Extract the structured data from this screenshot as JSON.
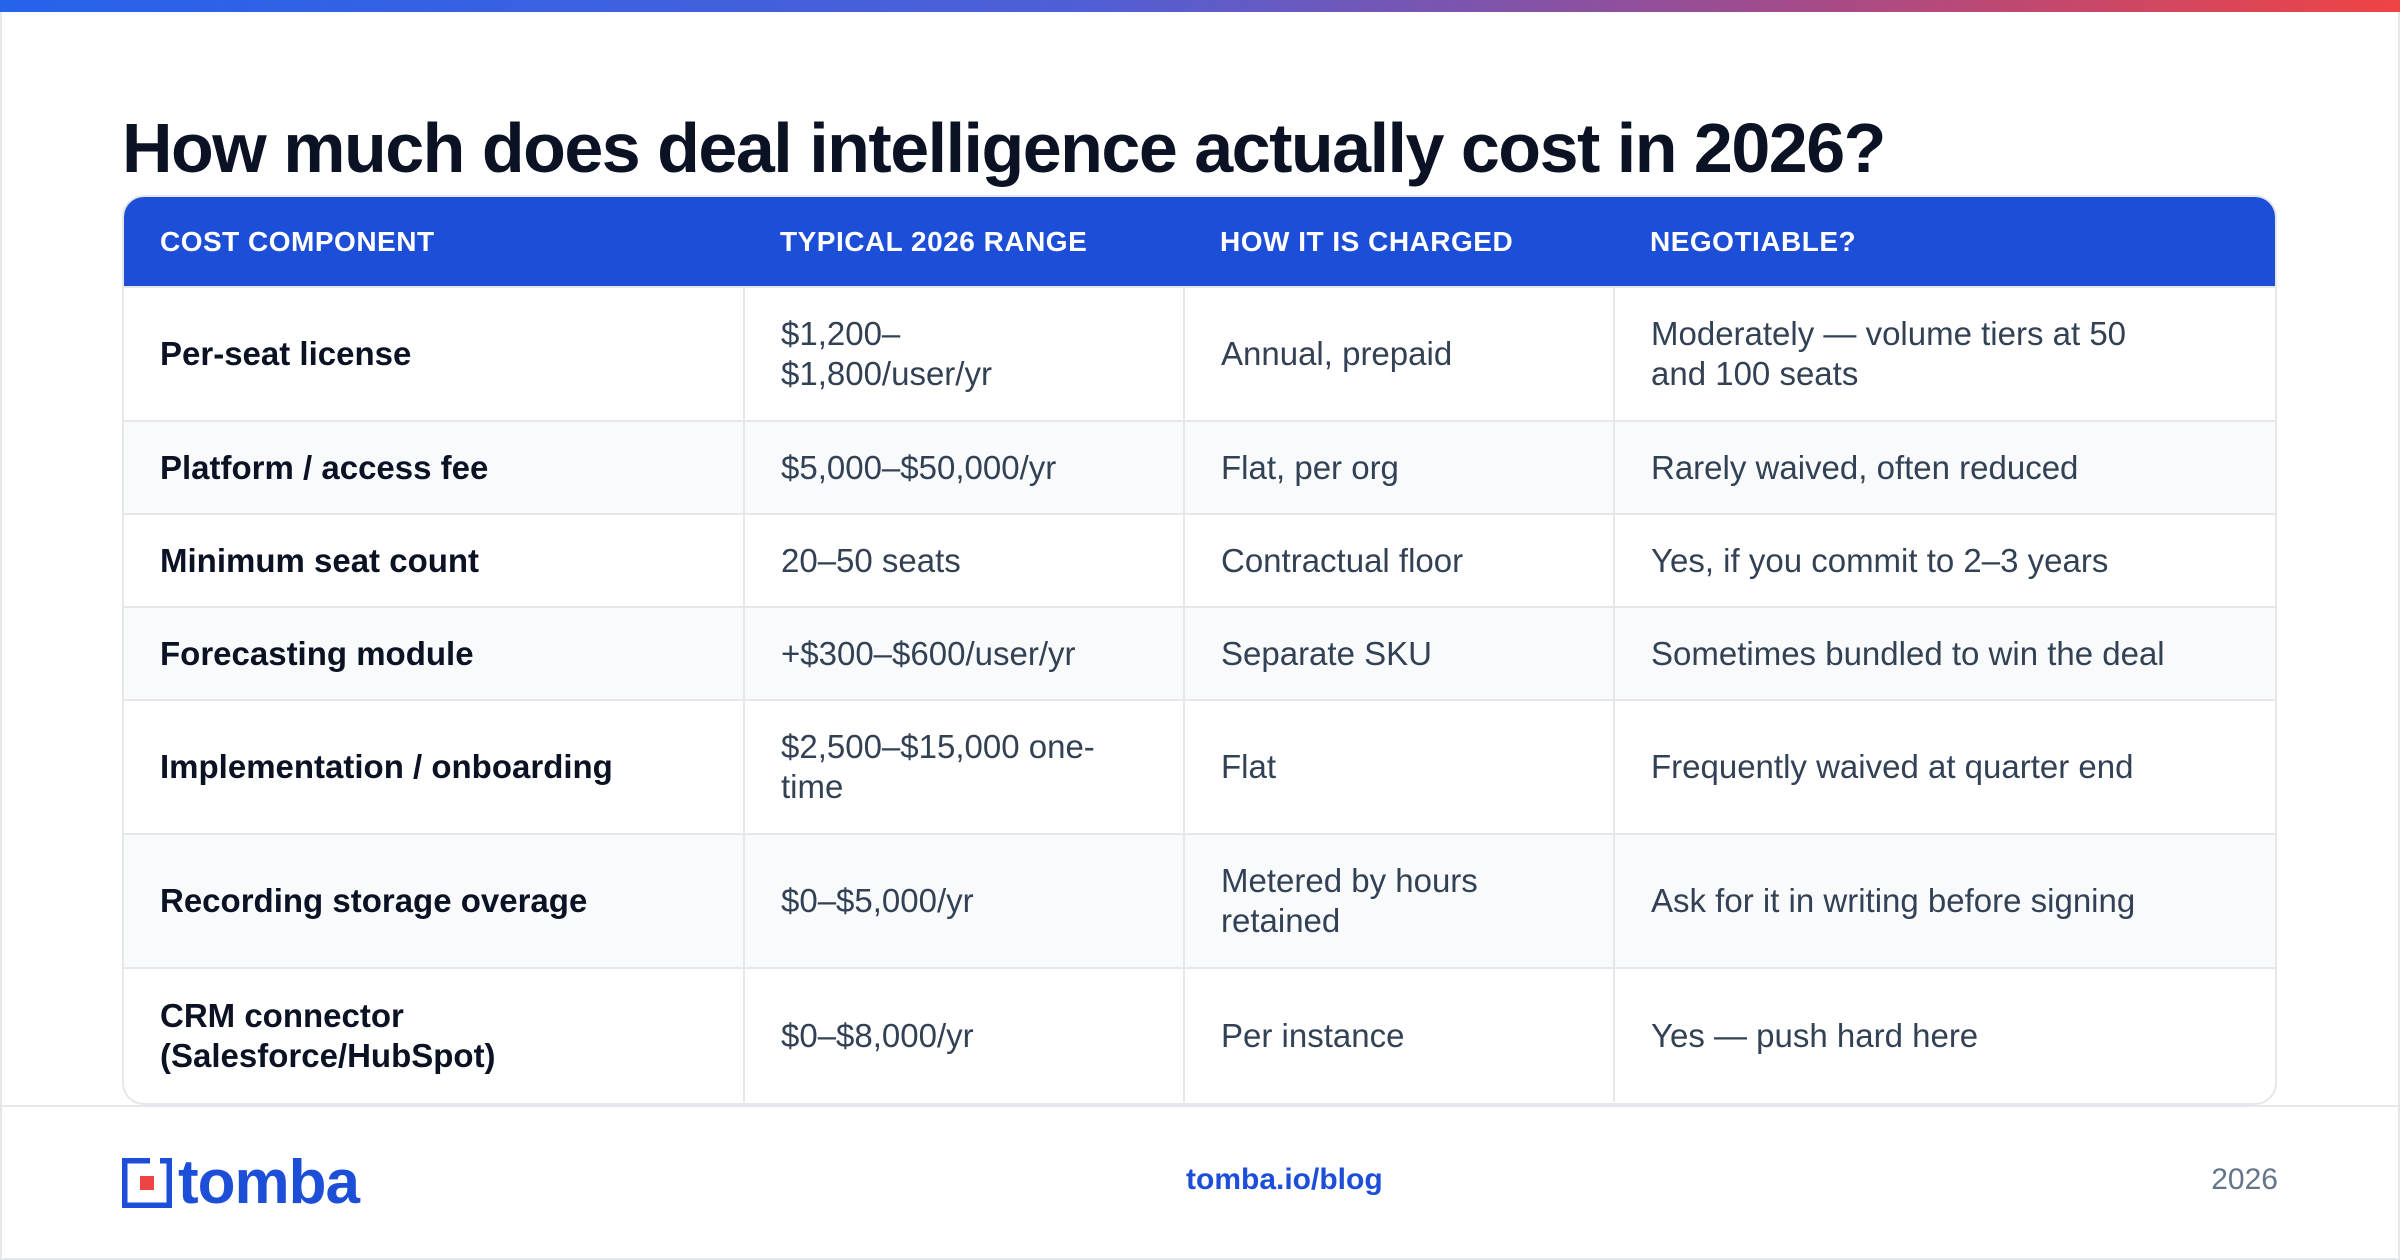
{
  "title": "How much does deal intelligence actually cost in 2026?",
  "colors": {
    "accent": "#1d4ed8",
    "brand_red": "#ef4444"
  },
  "table": {
    "headers": [
      "COST COMPONENT",
      "TYPICAL 2026 RANGE",
      "HOW IT IS CHARGED",
      "NEGOTIABLE?"
    ],
    "rows": [
      {
        "component": "Per-seat license",
        "range": "$1,200–$1,800/user/yr",
        "charged": "Annual, prepaid",
        "negotiable": "Moderately — volume tiers at 50 and 100 seats"
      },
      {
        "component": "Platform / access fee",
        "range": "$5,000–$50,000/yr",
        "charged": "Flat, per org",
        "negotiable": "Rarely waived, often reduced"
      },
      {
        "component": "Minimum seat count",
        "range": "20–50 seats",
        "charged": "Contractual floor",
        "negotiable": "Yes, if you commit to 2–3 years"
      },
      {
        "component": "Forecasting module",
        "range": "+$300–$600/user/yr",
        "charged": "Separate SKU",
        "negotiable": "Sometimes bundled to win the deal"
      },
      {
        "component": "Implementation / onboarding",
        "range": "$2,500–$15,000 one-time",
        "charged": "Flat",
        "negotiable": "Frequently waived at quarter end"
      },
      {
        "component": "Recording storage overage",
        "range": "$0–$5,000/yr",
        "charged": "Metered by hours retained",
        "negotiable": "Ask for it in writing before signing"
      },
      {
        "component": "CRM connector (Salesforce/HubSpot)",
        "range": "$0–$8,000/yr",
        "charged": "Per instance",
        "negotiable": "Yes — push hard here"
      }
    ]
  },
  "footer": {
    "logo_text": "tomba",
    "link": "tomba.io/blog",
    "year": "2026"
  }
}
